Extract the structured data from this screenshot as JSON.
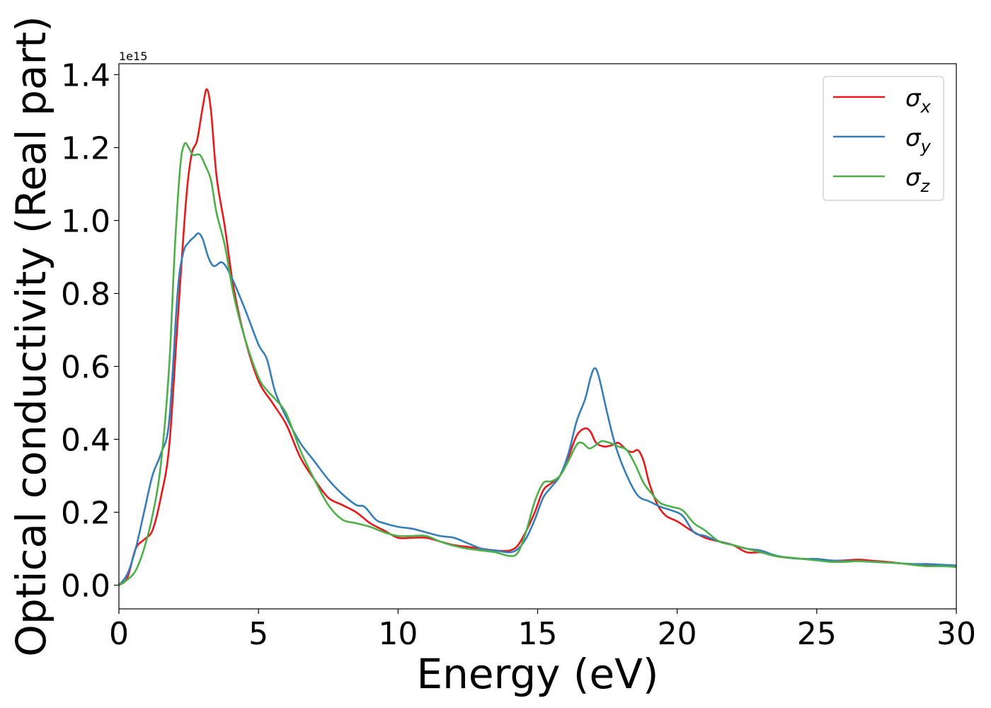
{
  "chart_data": {
    "type": "line",
    "xlabel": "Energy (eV)",
    "ylabel": "Optical conductivity (Real part)",
    "y_offset_label": "1e15",
    "xlim": [
      0,
      30
    ],
    "ylim": [
      -0.065,
      1.43
    ],
    "x_ticks": [
      0,
      5,
      10,
      15,
      20,
      25,
      30
    ],
    "x_tick_labels": [
      "0",
      "5",
      "10",
      "15",
      "20",
      "25",
      "30"
    ],
    "y_ticks": [
      0.0,
      0.2,
      0.4,
      0.6,
      0.8,
      1.0,
      1.2,
      1.4
    ],
    "y_tick_labels": [
      "0.0",
      "0.2",
      "0.4",
      "0.6",
      "0.8",
      "1.0",
      "1.2",
      "1.4"
    ],
    "grid": false,
    "legend_position": "top-right",
    "series": [
      {
        "name": "σx",
        "symbol": "σ",
        "subscript": "x",
        "color": "#e41a1c",
        "points": [
          [
            0,
            0
          ],
          [
            0.3,
            0.02
          ],
          [
            0.6,
            0.1
          ],
          [
            0.9,
            0.125
          ],
          [
            1.2,
            0.15
          ],
          [
            1.5,
            0.24
          ],
          [
            1.8,
            0.38
          ],
          [
            2.1,
            0.72
          ],
          [
            2.4,
            1.05
          ],
          [
            2.6,
            1.18
          ],
          [
            2.8,
            1.22
          ],
          [
            3.0,
            1.31
          ],
          [
            3.15,
            1.36
          ],
          [
            3.3,
            1.3
          ],
          [
            3.5,
            1.12
          ],
          [
            3.8,
            0.98
          ],
          [
            4.1,
            0.82
          ],
          [
            4.5,
            0.68
          ],
          [
            5.0,
            0.56
          ],
          [
            5.5,
            0.5
          ],
          [
            6.0,
            0.44
          ],
          [
            6.5,
            0.35
          ],
          [
            7.0,
            0.29
          ],
          [
            7.5,
            0.24
          ],
          [
            8.0,
            0.22
          ],
          [
            8.5,
            0.2
          ],
          [
            9.0,
            0.17
          ],
          [
            9.5,
            0.15
          ],
          [
            10.0,
            0.13
          ],
          [
            10.5,
            0.13
          ],
          [
            11.0,
            0.13
          ],
          [
            11.5,
            0.12
          ],
          [
            12.0,
            0.11
          ],
          [
            12.5,
            0.105
          ],
          [
            13.0,
            0.1
          ],
          [
            13.5,
            0.095
          ],
          [
            14.0,
            0.095
          ],
          [
            14.3,
            0.11
          ],
          [
            14.6,
            0.15
          ],
          [
            14.9,
            0.2
          ],
          [
            15.2,
            0.26
          ],
          [
            15.5,
            0.28
          ],
          [
            15.8,
            0.3
          ],
          [
            16.1,
            0.35
          ],
          [
            16.4,
            0.41
          ],
          [
            16.7,
            0.43
          ],
          [
            16.9,
            0.42
          ],
          [
            17.1,
            0.39
          ],
          [
            17.4,
            0.38
          ],
          [
            17.7,
            0.385
          ],
          [
            17.9,
            0.39
          ],
          [
            18.2,
            0.37
          ],
          [
            18.4,
            0.365
          ],
          [
            18.6,
            0.37
          ],
          [
            18.8,
            0.34
          ],
          [
            19.0,
            0.28
          ],
          [
            19.3,
            0.22
          ],
          [
            19.6,
            0.19
          ],
          [
            20.0,
            0.175
          ],
          [
            20.5,
            0.15
          ],
          [
            21.0,
            0.13
          ],
          [
            21.5,
            0.12
          ],
          [
            22.0,
            0.11
          ],
          [
            22.5,
            0.09
          ],
          [
            23.0,
            0.09
          ],
          [
            23.5,
            0.08
          ],
          [
            24.0,
            0.075
          ],
          [
            24.5,
            0.072
          ],
          [
            25.0,
            0.07
          ],
          [
            25.5,
            0.067
          ],
          [
            26.0,
            0.068
          ],
          [
            26.5,
            0.07
          ],
          [
            27.0,
            0.067
          ],
          [
            27.5,
            0.064
          ],
          [
            28.0,
            0.06
          ],
          [
            28.5,
            0.056
          ],
          [
            29.0,
            0.055
          ],
          [
            29.5,
            0.054
          ],
          [
            30.0,
            0.052
          ]
        ]
      },
      {
        "name": "σy",
        "symbol": "σ",
        "subscript": "y",
        "color": "#377eb8",
        "points": [
          [
            0,
            0
          ],
          [
            0.3,
            0.03
          ],
          [
            0.6,
            0.1
          ],
          [
            0.9,
            0.2
          ],
          [
            1.2,
            0.3
          ],
          [
            1.5,
            0.36
          ],
          [
            1.8,
            0.45
          ],
          [
            2.1,
            0.8
          ],
          [
            2.3,
            0.91
          ],
          [
            2.5,
            0.94
          ],
          [
            2.7,
            0.955
          ],
          [
            2.85,
            0.965
          ],
          [
            3.0,
            0.95
          ],
          [
            3.2,
            0.9
          ],
          [
            3.4,
            0.875
          ],
          [
            3.7,
            0.885
          ],
          [
            4.0,
            0.85
          ],
          [
            4.5,
            0.76
          ],
          [
            5.0,
            0.66
          ],
          [
            5.3,
            0.62
          ],
          [
            5.6,
            0.53
          ],
          [
            6.0,
            0.46
          ],
          [
            6.5,
            0.39
          ],
          [
            7.0,
            0.34
          ],
          [
            7.5,
            0.29
          ],
          [
            8.0,
            0.25
          ],
          [
            8.5,
            0.22
          ],
          [
            8.8,
            0.215
          ],
          [
            9.2,
            0.18
          ],
          [
            9.5,
            0.17
          ],
          [
            10.0,
            0.16
          ],
          [
            10.5,
            0.155
          ],
          [
            11.0,
            0.145
          ],
          [
            11.5,
            0.135
          ],
          [
            12.0,
            0.13
          ],
          [
            12.5,
            0.115
          ],
          [
            13.0,
            0.1
          ],
          [
            13.5,
            0.095
          ],
          [
            14.0,
            0.09
          ],
          [
            14.3,
            0.1
          ],
          [
            14.6,
            0.13
          ],
          [
            14.9,
            0.18
          ],
          [
            15.2,
            0.24
          ],
          [
            15.5,
            0.27
          ],
          [
            15.8,
            0.3
          ],
          [
            16.1,
            0.36
          ],
          [
            16.4,
            0.45
          ],
          [
            16.7,
            0.51
          ],
          [
            16.9,
            0.57
          ],
          [
            17.05,
            0.595
          ],
          [
            17.2,
            0.57
          ],
          [
            17.5,
            0.47
          ],
          [
            17.8,
            0.38
          ],
          [
            18.2,
            0.3
          ],
          [
            18.6,
            0.245
          ],
          [
            19.0,
            0.23
          ],
          [
            19.4,
            0.215
          ],
          [
            19.8,
            0.205
          ],
          [
            20.2,
            0.19
          ],
          [
            20.6,
            0.145
          ],
          [
            21.0,
            0.135
          ],
          [
            21.5,
            0.12
          ],
          [
            22.0,
            0.11
          ],
          [
            22.5,
            0.1
          ],
          [
            23.0,
            0.095
          ],
          [
            23.5,
            0.082
          ],
          [
            24.0,
            0.075
          ],
          [
            24.5,
            0.072
          ],
          [
            25.0,
            0.072
          ],
          [
            25.5,
            0.068
          ],
          [
            26.0,
            0.066
          ],
          [
            26.5,
            0.066
          ],
          [
            27.0,
            0.064
          ],
          [
            27.5,
            0.062
          ],
          [
            28.0,
            0.06
          ],
          [
            28.5,
            0.058
          ],
          [
            29.0,
            0.058
          ],
          [
            29.5,
            0.056
          ],
          [
            30.0,
            0.054
          ]
        ]
      },
      {
        "name": "σz",
        "symbol": "σ",
        "subscript": "z",
        "color": "#4daf4a",
        "points": [
          [
            0,
            0
          ],
          [
            0.3,
            0.015
          ],
          [
            0.6,
            0.04
          ],
          [
            0.9,
            0.1
          ],
          [
            1.2,
            0.19
          ],
          [
            1.5,
            0.33
          ],
          [
            1.8,
            0.6
          ],
          [
            2.0,
            0.92
          ],
          [
            2.2,
            1.15
          ],
          [
            2.35,
            1.21
          ],
          [
            2.5,
            1.2
          ],
          [
            2.65,
            1.18
          ],
          [
            2.9,
            1.18
          ],
          [
            3.1,
            1.15
          ],
          [
            3.3,
            1.11
          ],
          [
            3.5,
            1.02
          ],
          [
            3.8,
            0.93
          ],
          [
            4.1,
            0.8
          ],
          [
            4.5,
            0.68
          ],
          [
            5.0,
            0.57
          ],
          [
            5.3,
            0.535
          ],
          [
            5.6,
            0.51
          ],
          [
            6.0,
            0.47
          ],
          [
            6.5,
            0.37
          ],
          [
            7.0,
            0.29
          ],
          [
            7.5,
            0.22
          ],
          [
            8.0,
            0.18
          ],
          [
            8.5,
            0.17
          ],
          [
            9.0,
            0.16
          ],
          [
            9.5,
            0.145
          ],
          [
            10.0,
            0.135
          ],
          [
            10.5,
            0.135
          ],
          [
            11.0,
            0.135
          ],
          [
            11.5,
            0.12
          ],
          [
            12.0,
            0.108
          ],
          [
            12.5,
            0.1
          ],
          [
            13.0,
            0.095
          ],
          [
            13.5,
            0.09
          ],
          [
            14.0,
            0.08
          ],
          [
            14.3,
            0.09
          ],
          [
            14.6,
            0.15
          ],
          [
            14.9,
            0.23
          ],
          [
            15.2,
            0.28
          ],
          [
            15.5,
            0.285
          ],
          [
            15.8,
            0.3
          ],
          [
            16.1,
            0.34
          ],
          [
            16.4,
            0.385
          ],
          [
            16.6,
            0.39
          ],
          [
            16.85,
            0.375
          ],
          [
            17.1,
            0.385
          ],
          [
            17.3,
            0.395
          ],
          [
            17.6,
            0.39
          ],
          [
            17.9,
            0.38
          ],
          [
            18.2,
            0.37
          ],
          [
            18.5,
            0.33
          ],
          [
            18.8,
            0.28
          ],
          [
            19.1,
            0.25
          ],
          [
            19.4,
            0.225
          ],
          [
            19.8,
            0.215
          ],
          [
            20.2,
            0.205
          ],
          [
            20.6,
            0.17
          ],
          [
            21.0,
            0.15
          ],
          [
            21.5,
            0.12
          ],
          [
            22.0,
            0.11
          ],
          [
            22.5,
            0.1
          ],
          [
            23.0,
            0.09
          ],
          [
            23.5,
            0.08
          ],
          [
            24.0,
            0.076
          ],
          [
            24.5,
            0.072
          ],
          [
            25.0,
            0.068
          ],
          [
            25.5,
            0.064
          ],
          [
            26.0,
            0.064
          ],
          [
            26.5,
            0.066
          ],
          [
            27.0,
            0.064
          ],
          [
            27.5,
            0.062
          ],
          [
            28.0,
            0.06
          ],
          [
            28.5,
            0.055
          ],
          [
            29.0,
            0.052
          ],
          [
            29.5,
            0.052
          ],
          [
            30.0,
            0.05
          ]
        ]
      }
    ]
  }
}
